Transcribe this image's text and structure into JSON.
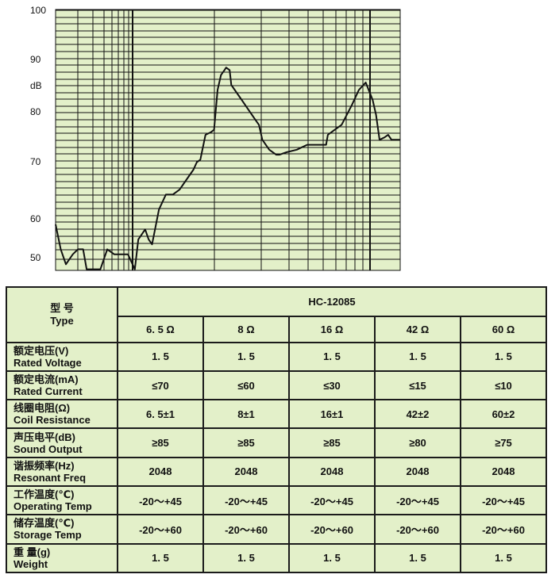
{
  "chart_data": {
    "type": "line",
    "title": "",
    "xlabel": "",
    "ylabel": "dB",
    "ylim": [
      48,
      100
    ],
    "yticks": [
      100,
      90,
      80,
      70,
      60,
      50
    ],
    "ytick_labels": [
      "100",
      "90",
      "80",
      "70",
      "60",
      "50"
    ],
    "grid": true,
    "note": "",
    "series": [
      {
        "values": [
          [
            0,
            57
          ],
          [
            1.5,
            52
          ],
          [
            3,
            49
          ],
          [
            5,
            51
          ],
          [
            6.5,
            52
          ],
          [
            8,
            52
          ],
          [
            9,
            48
          ],
          [
            10,
            48
          ],
          [
            11,
            48
          ],
          [
            13,
            48
          ],
          [
            15,
            52
          ],
          [
            17,
            51
          ],
          [
            19,
            51
          ],
          [
            21,
            51
          ],
          [
            23,
            48
          ],
          [
            24,
            54
          ],
          [
            26,
            56
          ],
          [
            27,
            54
          ],
          [
            28,
            53
          ],
          [
            30,
            60
          ],
          [
            32,
            63
          ],
          [
            34,
            63
          ],
          [
            36,
            64
          ],
          [
            38,
            66
          ],
          [
            40,
            68
          ],
          [
            41,
            69.5
          ],
          [
            42,
            70
          ],
          [
            43.5,
            75
          ],
          [
            45,
            75.5
          ],
          [
            46,
            76
          ],
          [
            47,
            84
          ],
          [
            48,
            87
          ],
          [
            49,
            88
          ],
          [
            49.5,
            88.5
          ],
          [
            50.5,
            88
          ],
          [
            51,
            85
          ],
          [
            52,
            84
          ],
          [
            54,
            82
          ],
          [
            56,
            80
          ],
          [
            58,
            78
          ],
          [
            59,
            77
          ],
          [
            60,
            74
          ],
          [
            62,
            72
          ],
          [
            64,
            71
          ],
          [
            65,
            71
          ],
          [
            67,
            71.5
          ],
          [
            70,
            72
          ],
          [
            73,
            73
          ],
          [
            76,
            73
          ],
          [
            78.5,
            73
          ],
          [
            79,
            75
          ],
          [
            81,
            76
          ],
          [
            83,
            77
          ],
          [
            86,
            81
          ],
          [
            88,
            84
          ],
          [
            90,
            85.5
          ],
          [
            92,
            82
          ],
          [
            93,
            79
          ],
          [
            94,
            74
          ],
          [
            95.5,
            74.5
          ],
          [
            96.5,
            75
          ],
          [
            97.5,
            74
          ],
          [
            100,
            74
          ]
        ]
      }
    ]
  },
  "table": {
    "type_label_cn": "型    号",
    "type_label_en": "Type",
    "model": "HC-12085",
    "variants": [
      "6. 5 Ω",
      "8 Ω",
      "16 Ω",
      "42 Ω",
      "60 Ω"
    ],
    "rows": [
      {
        "cn": "额定电压(V)",
        "en": "Rated Voltage",
        "values": [
          "1. 5",
          "1. 5",
          "1. 5",
          "1. 5",
          "1. 5"
        ]
      },
      {
        "cn": "额定电流(mA)",
        "en": "Rated Current",
        "values": [
          "≤70",
          "≤60",
          "≤30",
          "≤15",
          "≤10"
        ]
      },
      {
        "cn": "线圈电阻(Ω)",
        "en": "Coil Resistance",
        "values": [
          "6. 5±1",
          "8±1",
          "16±1",
          "42±2",
          "60±2"
        ]
      },
      {
        "cn": "声压电平(dB)",
        "en": "Sound Output",
        "values": [
          "≥85",
          "≥85",
          "≥85",
          "≥80",
          "≥75"
        ]
      },
      {
        "cn": "谐振频率(Hz)",
        "en": "Resonant Freq",
        "values": [
          "2048",
          "2048",
          "2048",
          "2048",
          "2048"
        ]
      },
      {
        "cn": "工作温度(℃)",
        "en": "Operating Temp",
        "values": [
          "-20～+45",
          "-20～+45",
          "-20～+45",
          "-20～+45",
          "-20～+45"
        ]
      },
      {
        "cn": "储存温度(℃)",
        "en": "Storage Temp",
        "values": [
          "-20～+60",
          "-20～+60",
          "-20～+60",
          "-20～+60",
          "-20～+60"
        ]
      },
      {
        "cn": "重   量(g)",
        "en": "Weight",
        "values": [
          "1. 5",
          "1. 5",
          "1. 5",
          "1. 5",
          "1. 5"
        ]
      }
    ]
  },
  "colors": {
    "chart_bg": "#e3f0c9",
    "table_bg": "#e3f0c9",
    "grid": "#111111",
    "line": "#111111"
  }
}
